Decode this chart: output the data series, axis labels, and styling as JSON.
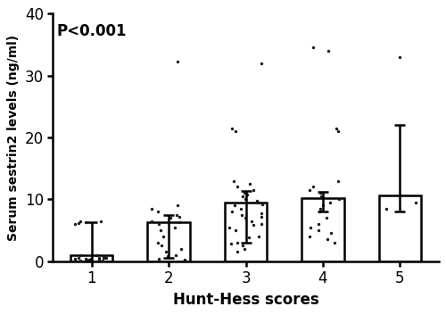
{
  "xlabel": "Hunt-Hess scores",
  "ylabel": "Serum sestrin2 levels (ng/ml)",
  "annotation": "P<0.001",
  "ylim": [
    0,
    40
  ],
  "yticks": [
    0,
    10,
    20,
    30,
    40
  ],
  "categories": [
    1,
    2,
    3,
    4,
    5
  ],
  "bar_means": [
    1.0,
    6.3,
    9.5,
    10.2,
    10.7
  ],
  "bar_sd_upper": [
    6.3,
    7.5,
    11.3,
    11.2,
    22.0
  ],
  "bar_sd_lower": [
    0.0,
    0.5,
    3.0,
    8.0,
    8.0
  ],
  "bar_color": "#ffffff",
  "bar_edgecolor": "#000000",
  "dot_color": "#1a1a1a",
  "dot_size": 6,
  "bar_width": 0.55,
  "dots": {
    "1": [
      0.1,
      0.1,
      0.2,
      0.2,
      0.3,
      0.3,
      0.4,
      0.4,
      0.5,
      0.5,
      0.6,
      0.6,
      0.7,
      0.8,
      0.9,
      1.0,
      6.0,
      6.1,
      6.3,
      6.4,
      6.5,
      0.15,
      0.25,
      0.35
    ],
    "2": [
      0.4,
      0.8,
      1.5,
      2.0,
      3.0,
      4.0,
      5.0,
      5.5,
      6.0,
      6.3,
      6.5,
      7.0,
      7.2,
      7.5,
      8.0,
      8.5,
      9.0,
      0.3,
      1.0,
      2.5,
      32.2
    ],
    "3": [
      1.5,
      2.0,
      2.5,
      3.0,
      4.0,
      5.0,
      5.5,
      6.0,
      6.5,
      7.0,
      7.2,
      7.5,
      8.0,
      8.5,
      9.0,
      9.2,
      9.5,
      10.0,
      10.5,
      11.0,
      11.5,
      12.0,
      12.5,
      13.0,
      21.0,
      21.5,
      32.0,
      2.8,
      3.8,
      5.8,
      7.8,
      9.8,
      10.8
    ],
    "4": [
      3.0,
      4.0,
      4.5,
      5.0,
      6.0,
      7.0,
      8.0,
      8.5,
      9.0,
      9.5,
      10.0,
      10.5,
      11.0,
      11.5,
      12.0,
      13.0,
      21.0,
      21.5,
      34.0,
      34.5,
      3.5,
      5.5
    ],
    "5": [
      8.5,
      9.5,
      33.0
    ]
  },
  "background_color": "#ffffff",
  "linewidth": 1.8,
  "capsize": 4
}
